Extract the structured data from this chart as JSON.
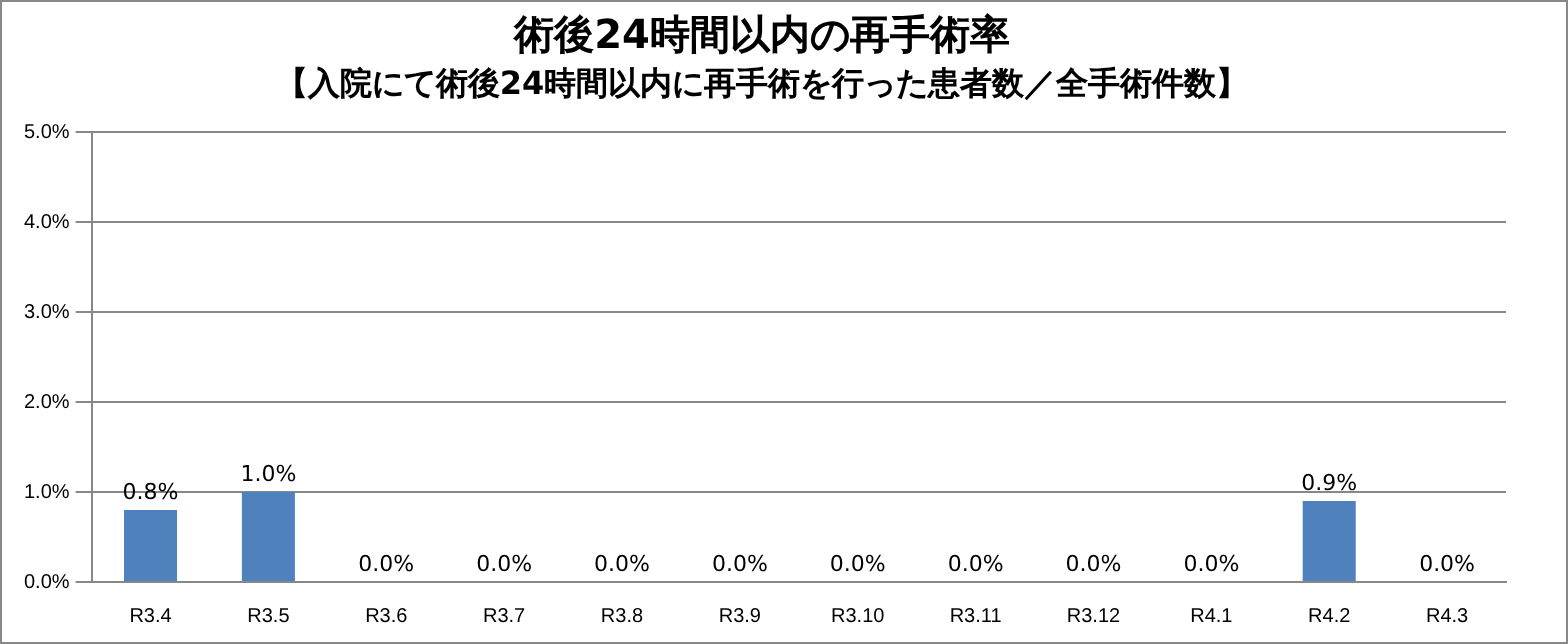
{
  "chart_data": {
    "type": "bar",
    "title": "術後24時間以内の再手術率",
    "subtitle": "【入院にて術後24時間以内に再手術を行った患者数／全手術件数】",
    "categories": [
      "R3.4",
      "R3.5",
      "R3.6",
      "R3.7",
      "R3.8",
      "R3.9",
      "R3.10",
      "R3.11",
      "R3.12",
      "R4.1",
      "R4.2",
      "R4.3"
    ],
    "values": [
      0.8,
      1.0,
      0,
      0,
      0,
      0,
      0,
      0,
      0,
      0,
      0.9,
      0
    ],
    "value_labels": [
      "0.8%",
      "1.0%",
      "0.0%",
      "0.0%",
      "0.0%",
      "0.0%",
      "0.0%",
      "0.0%",
      "0.0%",
      "0.0%",
      "0.9%",
      "0.0%"
    ],
    "color": "#4f81bd",
    "ylim": [
      0,
      5
    ],
    "yticks": [
      {
        "value": 0,
        "label": "0.0%"
      },
      {
        "value": 1,
        "label": "1.0%"
      },
      {
        "value": 2,
        "label": "2.0%"
      },
      {
        "value": 3,
        "label": "3.0%"
      },
      {
        "value": 4,
        "label": "4.0%"
      },
      {
        "value": 5,
        "label": "5.0%"
      }
    ],
    "grid": "y",
    "legend": false
  }
}
